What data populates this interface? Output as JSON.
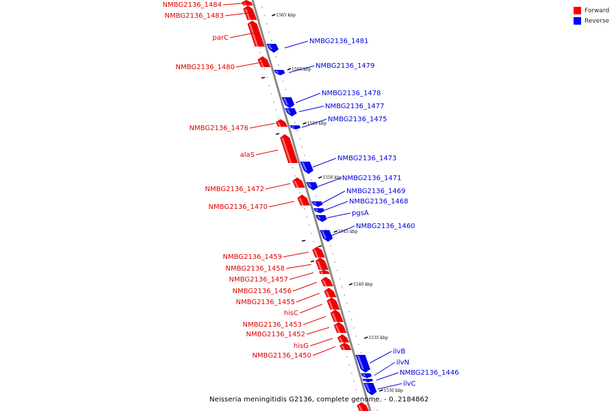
{
  "legend": {
    "forward_label": "Forward",
    "reverse_label": "Reverse",
    "forward_color": "#ff0000",
    "reverse_color": "#0000ff"
  },
  "caption": "Neisseria meningitidis G2136, complete genome. - 0..2184862",
  "tick_labels": {
    "t1565": "1565 kbp",
    "t1560": "1560 kbp",
    "t1555": "1555 kbp",
    "t1550": "1550 kbp",
    "t1545": "1545 kbp",
    "t1540": "1540 kbp",
    "t1535": "1535 kbp",
    "t1530": "1530 kbp"
  },
  "genes": {
    "g1484": "NMBG2136_1484",
    "g1483": "NMBG2136_1483",
    "parC": "parC",
    "g1481": "NMBG2136_1481",
    "g1480": "NMBG2136_1480",
    "g1479": "NMBG2136_1479",
    "g1478": "NMBG2136_1478",
    "g1477": "NMBG2136_1477",
    "g1476": "NMBG2136_1476",
    "g1475": "NMBG2136_1475",
    "alaS": "alaS",
    "g1473": "NMBG2136_1473",
    "g1472": "NMBG2136_1472",
    "g1471": "NMBG2136_1471",
    "g1470": "NMBG2136_1470",
    "g1469": "NMBG2136_1469",
    "g1468": "NMBG2136_1468",
    "pgsA": "pgsA",
    "g1460": "NMBG2136_1460",
    "g1459": "NMBG2136_1459",
    "g1458": "NMBG2136_1458",
    "g1457": "NMBG2136_1457",
    "g1456": "NMBG2136_1456",
    "g1455": "NMBG2136_1455",
    "hisC": "hisC",
    "g1453": "NMBG2136_1453",
    "g1452": "NMBG2136_1452",
    "hisG": "hisG",
    "g1450": "NMBG2136_1450",
    "ilvB": "ilvB",
    "ilvN": "ilvN",
    "g1446": "NMBG2136_1446",
    "ilvC": "ilvC"
  }
}
